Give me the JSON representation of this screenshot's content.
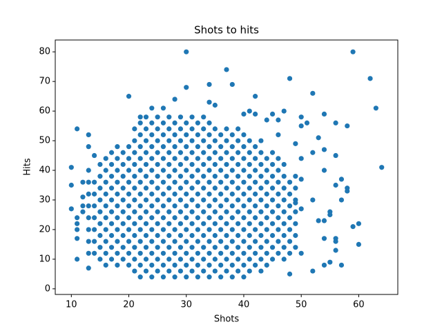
{
  "chart_data": {
    "type": "scatter",
    "title": "Shots to hits",
    "xlabel": "Shots",
    "ylabel": "Hits",
    "color": "#1f77b4",
    "xlim": [
      7.2,
      66.8
    ],
    "ylim": [
      -1.9,
      84
    ],
    "xticks": [
      10,
      20,
      30,
      40,
      50,
      60
    ],
    "yticks": [
      0,
      10,
      20,
      30,
      40,
      50,
      60,
      70,
      80
    ],
    "x": [
      10,
      10,
      10,
      11,
      11,
      11,
      11,
      11,
      11,
      12,
      12,
      12,
      12,
      13,
      13,
      13,
      14,
      20,
      30,
      30,
      34,
      37,
      38,
      42,
      48,
      52,
      59,
      62,
      63,
      64,
      60,
      60,
      59,
      58,
      58,
      58,
      56,
      56,
      57,
      57,
      56,
      56,
      57,
      56,
      55,
      55,
      54,
      54,
      54,
      54,
      54,
      54,
      53,
      52,
      52,
      51,
      50,
      50,
      50,
      50,
      50,
      49,
      49,
      48,
      47,
      45,
      40,
      41,
      42,
      44,
      35,
      34,
      26,
      24,
      28,
      22,
      46,
      50,
      46,
      52,
      53,
      55,
      56,
      13,
      13,
      13,
      13,
      13,
      13,
      13,
      13,
      14,
      14,
      14,
      14,
      14,
      14,
      14,
      15,
      15,
      15,
      15,
      15,
      15,
      15,
      15,
      15,
      16,
      16,
      16,
      16,
      16,
      16,
      16,
      16,
      16,
      16,
      17,
      17,
      17,
      17,
      17,
      17,
      17,
      17,
      17,
      17,
      18,
      18,
      18,
      18,
      18,
      18,
      18,
      18,
      18,
      18,
      18,
      19,
      19,
      19,
      19,
      19,
      19,
      19,
      19,
      19,
      19,
      20,
      20,
      20,
      20,
      20,
      20,
      20,
      20,
      20,
      20,
      20,
      21,
      21,
      21,
      21,
      21,
      21,
      21,
      21,
      21,
      21,
      21,
      21,
      21,
      22,
      22,
      22,
      22,
      22,
      22,
      22,
      22,
      22,
      22,
      22,
      22,
      22,
      22,
      23,
      23,
      23,
      23,
      23,
      23,
      23,
      23,
      23,
      23,
      23,
      23,
      23,
      23,
      24,
      24,
      24,
      24,
      24,
      24,
      24,
      24,
      24,
      24,
      24,
      24,
      24,
      24,
      25,
      25,
      25,
      25,
      25,
      25,
      25,
      25,
      25,
      25,
      25,
      25,
      25,
      25,
      26,
      26,
      26,
      26,
      26,
      26,
      26,
      26,
      26,
      26,
      26,
      26,
      26,
      26,
      27,
      27,
      27,
      27,
      27,
      27,
      27,
      27,
      27,
      27,
      27,
      27,
      27,
      27,
      28,
      28,
      28,
      28,
      28,
      28,
      28,
      28,
      28,
      28,
      28,
      28,
      28,
      28,
      29,
      29,
      29,
      29,
      29,
      29,
      29,
      29,
      29,
      29,
      29,
      29,
      29,
      29,
      30,
      30,
      30,
      30,
      30,
      30,
      30,
      30,
      30,
      30,
      30,
      30,
      30,
      30,
      31,
      31,
      31,
      31,
      31,
      31,
      31,
      31,
      31,
      31,
      31,
      31,
      31,
      31,
      32,
      32,
      32,
      32,
      32,
      32,
      32,
      32,
      32,
      32,
      32,
      32,
      32,
      32,
      33,
      33,
      33,
      33,
      33,
      33,
      33,
      33,
      33,
      33,
      33,
      33,
      33,
      33,
      34,
      34,
      34,
      34,
      34,
      34,
      34,
      34,
      34,
      34,
      34,
      34,
      34,
      34,
      35,
      35,
      35,
      35,
      35,
      35,
      35,
      35,
      35,
      35,
      35,
      35,
      35,
      36,
      36,
      36,
      36,
      36,
      36,
      36,
      36,
      36,
      36,
      36,
      36,
      36,
      37,
      37,
      37,
      37,
      37,
      37,
      37,
      37,
      37,
      37,
      37,
      37,
      37,
      38,
      38,
      38,
      38,
      38,
      38,
      38,
      38,
      38,
      38,
      38,
      38,
      38,
      39,
      39,
      39,
      39,
      39,
      39,
      39,
      39,
      39,
      39,
      39,
      39,
      39,
      40,
      40,
      40,
      40,
      40,
      40,
      40,
      40,
      40,
      40,
      40,
      40,
      40,
      41,
      41,
      41,
      41,
      41,
      41,
      41,
      41,
      41,
      41,
      41,
      41,
      42,
      42,
      42,
      42,
      42,
      42,
      42,
      42,
      42,
      42,
      42,
      43,
      43,
      43,
      43,
      43,
      43,
      43,
      43,
      43,
      43,
      43,
      43,
      44,
      44,
      44,
      44,
      44,
      44,
      44,
      44,
      44,
      44,
      45,
      45,
      45,
      45,
      45,
      45,
      45,
      45,
      45,
      45,
      46,
      46,
      46,
      46,
      46,
      46,
      46,
      46,
      46,
      47,
      47,
      47,
      47,
      47,
      47,
      47,
      47,
      47,
      48,
      48,
      48,
      48,
      48,
      48,
      48,
      49,
      49,
      49,
      49,
      49,
      49,
      49
    ],
    "values": [
      41,
      35,
      27,
      54,
      24,
      22,
      20,
      17,
      10,
      36,
      31,
      28,
      26,
      52,
      48,
      7,
      45,
      65,
      80,
      68,
      69,
      74,
      69,
      65,
      71,
      66,
      80,
      71,
      61,
      41,
      22,
      15,
      21,
      34,
      33,
      55,
      56,
      45,
      37,
      30,
      17,
      13,
      8,
      35,
      25,
      26,
      59,
      47,
      40,
      23,
      17,
      8,
      51,
      46,
      6,
      56,
      58,
      44,
      37,
      27,
      12,
      49,
      29,
      5,
      60,
      59,
      59,
      60,
      59,
      57,
      62,
      63,
      61,
      61,
      64,
      58,
      57,
      55,
      52,
      30,
      23,
      9,
      16,
      12,
      16,
      20,
      24,
      28,
      32,
      36,
      40,
      12,
      16,
      20,
      24,
      28,
      32,
      36,
      10,
      14,
      18,
      22,
      26,
      30,
      34,
      38,
      42,
      8,
      12,
      16,
      20,
      24,
      28,
      32,
      36,
      40,
      44,
      10,
      14,
      18,
      22,
      26,
      30,
      34,
      38,
      42,
      46,
      8,
      12,
      16,
      20,
      24,
      28,
      32,
      36,
      40,
      44,
      48,
      10,
      14,
      18,
      22,
      26,
      30,
      34,
      38,
      42,
      46,
      8,
      12,
      16,
      20,
      24,
      28,
      32,
      36,
      40,
      44,
      48,
      6,
      10,
      14,
      18,
      22,
      26,
      30,
      34,
      38,
      42,
      46,
      50,
      54,
      4,
      8,
      12,
      16,
      20,
      24,
      28,
      32,
      36,
      40,
      44,
      48,
      52,
      56,
      6,
      10,
      14,
      18,
      22,
      26,
      30,
      34,
      38,
      42,
      46,
      50,
      54,
      58,
      4,
      8,
      12,
      16,
      20,
      24,
      28,
      32,
      36,
      40,
      44,
      48,
      52,
      56,
      6,
      10,
      14,
      18,
      22,
      26,
      30,
      34,
      38,
      42,
      46,
      50,
      54,
      58,
      4,
      8,
      12,
      16,
      20,
      24,
      28,
      32,
      36,
      40,
      44,
      48,
      52,
      56,
      6,
      10,
      14,
      18,
      22,
      26,
      30,
      34,
      38,
      42,
      46,
      50,
      54,
      58,
      4,
      8,
      12,
      16,
      20,
      24,
      28,
      32,
      36,
      40,
      44,
      48,
      52,
      56,
      6,
      10,
      14,
      18,
      22,
      26,
      30,
      34,
      38,
      42,
      46,
      50,
      54,
      58,
      4,
      8,
      12,
      16,
      20,
      24,
      28,
      32,
      36,
      40,
      44,
      48,
      52,
      56,
      6,
      10,
      14,
      18,
      22,
      26,
      30,
      34,
      38,
      42,
      46,
      50,
      54,
      58,
      4,
      8,
      12,
      16,
      20,
      24,
      28,
      32,
      36,
      40,
      44,
      48,
      52,
      56,
      6,
      10,
      14,
      18,
      22,
      26,
      30,
      34,
      38,
      42,
      46,
      50,
      54,
      58,
      4,
      8,
      12,
      16,
      20,
      24,
      28,
      32,
      36,
      40,
      44,
      48,
      52,
      56,
      6,
      10,
      14,
      18,
      22,
      26,
      30,
      34,
      38,
      42,
      46,
      50,
      54,
      4,
      8,
      12,
      16,
      20,
      24,
      28,
      32,
      36,
      40,
      44,
      48,
      52,
      6,
      10,
      14,
      18,
      22,
      26,
      30,
      34,
      38,
      42,
      46,
      50,
      54,
      4,
      8,
      12,
      16,
      20,
      24,
      28,
      32,
      36,
      40,
      44,
      48,
      52,
      6,
      10,
      14,
      18,
      22,
      26,
      30,
      34,
      38,
      42,
      46,
      50,
      54,
      4,
      8,
      12,
      16,
      20,
      24,
      28,
      32,
      36,
      40,
      44,
      48,
      52,
      6,
      10,
      14,
      18,
      22,
      26,
      30,
      34,
      38,
      42,
      46,
      50,
      8,
      12,
      16,
      20,
      24,
      28,
      32,
      36,
      40,
      44,
      48,
      6,
      10,
      14,
      18,
      22,
      26,
      30,
      34,
      38,
      42,
      46,
      50,
      8,
      12,
      16,
      20,
      24,
      28,
      32,
      36,
      40,
      44,
      10,
      14,
      18,
      22,
      26,
      30,
      34,
      38,
      42,
      46,
      12,
      16,
      20,
      24,
      28,
      32,
      36,
      40,
      44,
      10,
      14,
      18,
      22,
      26,
      30,
      34,
      38,
      42,
      12,
      16,
      20,
      24,
      28,
      32,
      36,
      14,
      18,
      22,
      26,
      30,
      34,
      38
    ]
  }
}
